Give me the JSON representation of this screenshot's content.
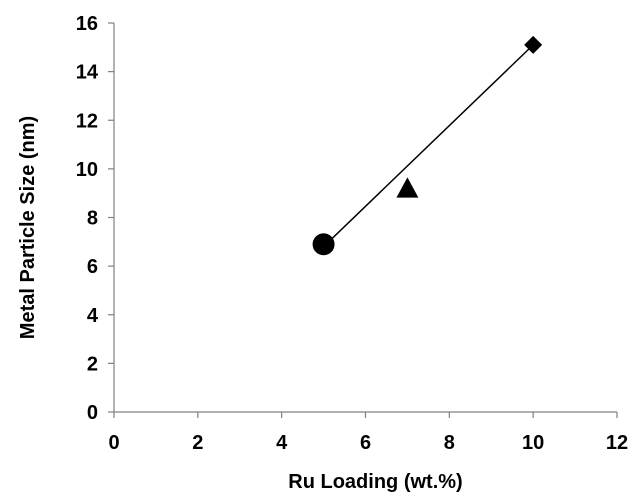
{
  "chart_data": {
    "type": "scatter",
    "title": "",
    "xlabel": "Ru Loading (wt.%)",
    "ylabel": "Metal Particle Size (nm)",
    "xlim": [
      0,
      12
    ],
    "ylim": [
      0,
      16
    ],
    "xticks": [
      0,
      2,
      4,
      6,
      8,
      10,
      12
    ],
    "yticks": [
      0,
      2,
      4,
      6,
      8,
      10,
      12,
      14,
      16
    ],
    "grid": false,
    "legend": "none",
    "points": [
      {
        "x": 5,
        "y": 6.9,
        "marker": "circle"
      },
      {
        "x": 7,
        "y": 9.2,
        "marker": "triangle"
      },
      {
        "x": 10,
        "y": 15.1,
        "marker": "diamond"
      }
    ],
    "trendline": {
      "x": [
        5,
        10
      ],
      "y": [
        6.8,
        15.1
      ]
    },
    "colors": {
      "marker": "#000000",
      "line": "#000000",
      "axis": "#808080"
    }
  }
}
